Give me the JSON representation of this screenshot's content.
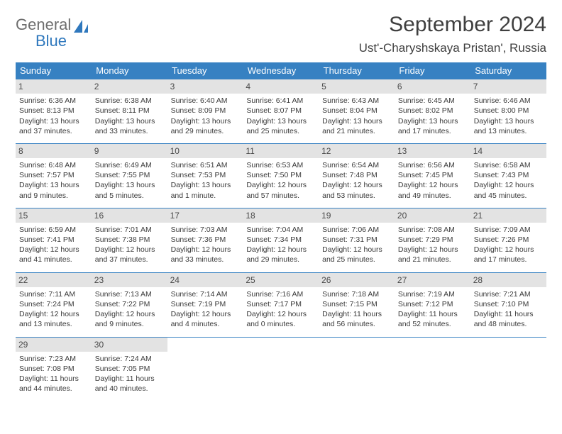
{
  "logo": {
    "word1": "General",
    "word2": "Blue"
  },
  "title": "September 2024",
  "location": "Ust'-Charyshskaya Pristan', Russia",
  "colors": {
    "header_bg": "#3781c2",
    "header_text": "#ffffff",
    "daynum_bg": "#e3e3e3",
    "border": "#3781c2",
    "logo_gray": "#6d6d6d",
    "logo_blue": "#2f78bd",
    "body_text": "#3a3a3a"
  },
  "dayHeaders": [
    "Sunday",
    "Monday",
    "Tuesday",
    "Wednesday",
    "Thursday",
    "Friday",
    "Saturday"
  ],
  "weeks": [
    [
      {
        "n": "1",
        "sr": "6:36 AM",
        "ss": "8:13 PM",
        "dl": "13 hours and 37 minutes."
      },
      {
        "n": "2",
        "sr": "6:38 AM",
        "ss": "8:11 PM",
        "dl": "13 hours and 33 minutes."
      },
      {
        "n": "3",
        "sr": "6:40 AM",
        "ss": "8:09 PM",
        "dl": "13 hours and 29 minutes."
      },
      {
        "n": "4",
        "sr": "6:41 AM",
        "ss": "8:07 PM",
        "dl": "13 hours and 25 minutes."
      },
      {
        "n": "5",
        "sr": "6:43 AM",
        "ss": "8:04 PM",
        "dl": "13 hours and 21 minutes."
      },
      {
        "n": "6",
        "sr": "6:45 AM",
        "ss": "8:02 PM",
        "dl": "13 hours and 17 minutes."
      },
      {
        "n": "7",
        "sr": "6:46 AM",
        "ss": "8:00 PM",
        "dl": "13 hours and 13 minutes."
      }
    ],
    [
      {
        "n": "8",
        "sr": "6:48 AM",
        "ss": "7:57 PM",
        "dl": "13 hours and 9 minutes."
      },
      {
        "n": "9",
        "sr": "6:49 AM",
        "ss": "7:55 PM",
        "dl": "13 hours and 5 minutes."
      },
      {
        "n": "10",
        "sr": "6:51 AM",
        "ss": "7:53 PM",
        "dl": "13 hours and 1 minute."
      },
      {
        "n": "11",
        "sr": "6:53 AM",
        "ss": "7:50 PM",
        "dl": "12 hours and 57 minutes."
      },
      {
        "n": "12",
        "sr": "6:54 AM",
        "ss": "7:48 PM",
        "dl": "12 hours and 53 minutes."
      },
      {
        "n": "13",
        "sr": "6:56 AM",
        "ss": "7:45 PM",
        "dl": "12 hours and 49 minutes."
      },
      {
        "n": "14",
        "sr": "6:58 AM",
        "ss": "7:43 PM",
        "dl": "12 hours and 45 minutes."
      }
    ],
    [
      {
        "n": "15",
        "sr": "6:59 AM",
        "ss": "7:41 PM",
        "dl": "12 hours and 41 minutes."
      },
      {
        "n": "16",
        "sr": "7:01 AM",
        "ss": "7:38 PM",
        "dl": "12 hours and 37 minutes."
      },
      {
        "n": "17",
        "sr": "7:03 AM",
        "ss": "7:36 PM",
        "dl": "12 hours and 33 minutes."
      },
      {
        "n": "18",
        "sr": "7:04 AM",
        "ss": "7:34 PM",
        "dl": "12 hours and 29 minutes."
      },
      {
        "n": "19",
        "sr": "7:06 AM",
        "ss": "7:31 PM",
        "dl": "12 hours and 25 minutes."
      },
      {
        "n": "20",
        "sr": "7:08 AM",
        "ss": "7:29 PM",
        "dl": "12 hours and 21 minutes."
      },
      {
        "n": "21",
        "sr": "7:09 AM",
        "ss": "7:26 PM",
        "dl": "12 hours and 17 minutes."
      }
    ],
    [
      {
        "n": "22",
        "sr": "7:11 AM",
        "ss": "7:24 PM",
        "dl": "12 hours and 13 minutes."
      },
      {
        "n": "23",
        "sr": "7:13 AM",
        "ss": "7:22 PM",
        "dl": "12 hours and 9 minutes."
      },
      {
        "n": "24",
        "sr": "7:14 AM",
        "ss": "7:19 PM",
        "dl": "12 hours and 4 minutes."
      },
      {
        "n": "25",
        "sr": "7:16 AM",
        "ss": "7:17 PM",
        "dl": "12 hours and 0 minutes."
      },
      {
        "n": "26",
        "sr": "7:18 AM",
        "ss": "7:15 PM",
        "dl": "11 hours and 56 minutes."
      },
      {
        "n": "27",
        "sr": "7:19 AM",
        "ss": "7:12 PM",
        "dl": "11 hours and 52 minutes."
      },
      {
        "n": "28",
        "sr": "7:21 AM",
        "ss": "7:10 PM",
        "dl": "11 hours and 48 minutes."
      }
    ],
    [
      {
        "n": "29",
        "sr": "7:23 AM",
        "ss": "7:08 PM",
        "dl": "11 hours and 44 minutes."
      },
      {
        "n": "30",
        "sr": "7:24 AM",
        "ss": "7:05 PM",
        "dl": "11 hours and 40 minutes."
      },
      null,
      null,
      null,
      null,
      null
    ]
  ],
  "labels": {
    "sunrise": "Sunrise: ",
    "sunset": "Sunset: ",
    "daylight": "Daylight: "
  }
}
